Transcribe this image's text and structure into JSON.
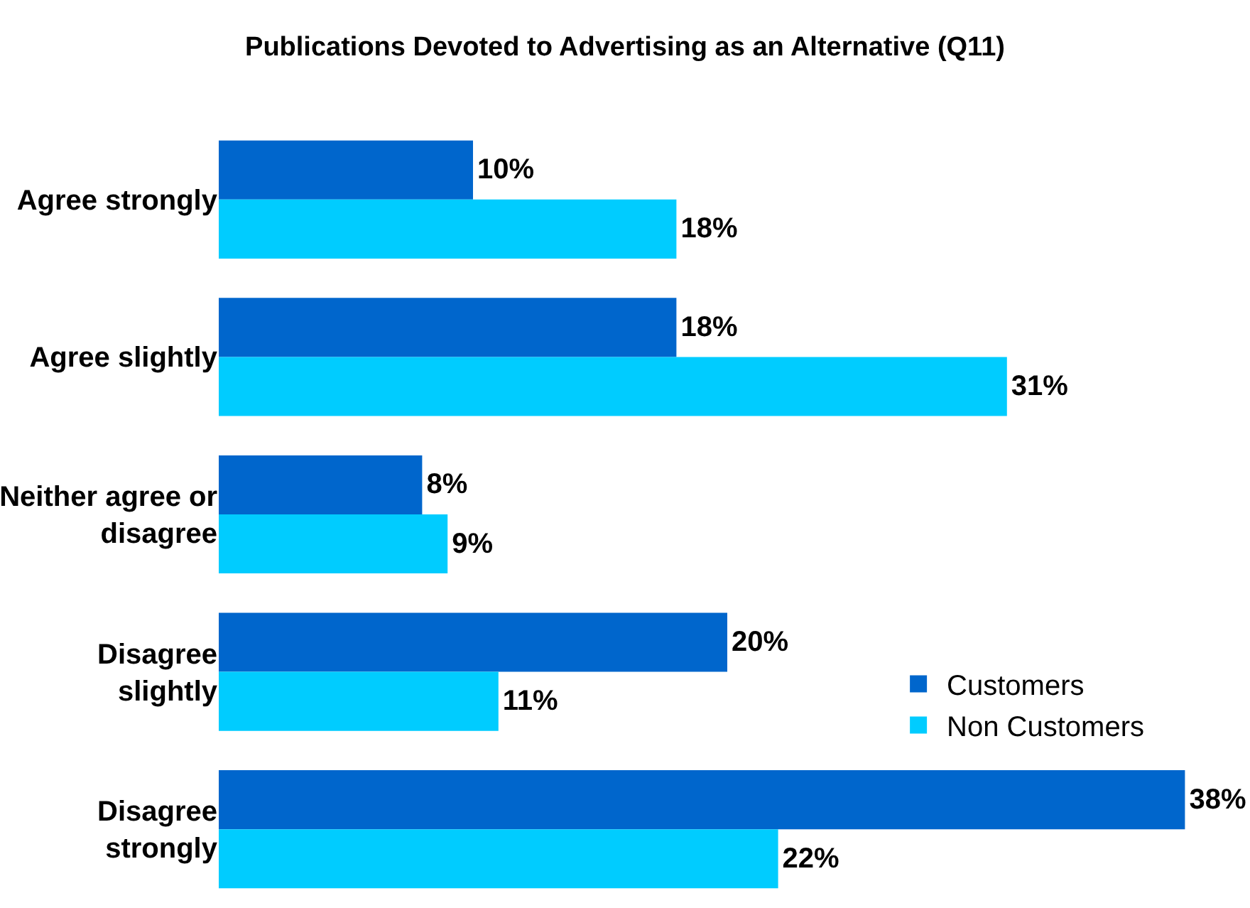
{
  "chart_data": {
    "type": "bar",
    "orientation": "horizontal",
    "title": "Publications Devoted to Advertising as an Alternative (Q11)",
    "categories": [
      "Agree strongly",
      "Agree slightly",
      "Neither agree or disagree",
      "Disagree slightly",
      "Disagree strongly"
    ],
    "series": [
      {
        "name": "Customers",
        "color": "#0066cc",
        "values": [
          10,
          18,
          8,
          20,
          38
        ],
        "value_labels": [
          "10%",
          "18%",
          "8%",
          "20%",
          "38%"
        ]
      },
      {
        "name": "Non Customers",
        "color": "#00ccff",
        "values": [
          18,
          31,
          9,
          11,
          22
        ],
        "value_labels": [
          "18%",
          "31%",
          "9%",
          "11%",
          "22%"
        ]
      }
    ],
    "tick_labels": "y",
    "legend": "bottom right"
  }
}
